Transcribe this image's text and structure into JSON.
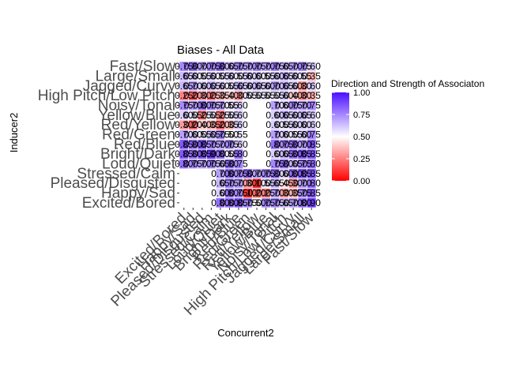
{
  "chart_data": {
    "type": "heatmap",
    "title": "Biases - All Data",
    "xlabel": "Concurrent2",
    "ylabel": "Inducer2",
    "categories": [
      "Excited/Bored",
      "Happy/Sad",
      "Pleased/Disgusted",
      "Stressed/Calm",
      "Loud/Quiet",
      "Bright/Dark",
      "Red/Blue",
      "Red/Green",
      "Red/Yellow",
      "Yellow/Blue",
      "Noisy/Tonal",
      "High Pitch/Low Pitch",
      "Jagged/Curvy",
      "Large/Small",
      "Fast/Slow"
    ],
    "y_categories": [
      "Excited/Bored",
      "Happy/Sad",
      "Pleased/Disgusted",
      "Stressed/Calm",
      "Loud/Quiet",
      "Bright/Dark",
      "Red/Blue",
      "Red/Green",
      "Red/Yellow",
      "Yellow/Blue",
      "Noisy/Tonal",
      "High Pitch/Low Pitch",
      "Jagged/Curvy",
      "Large/Small",
      "Fast/Slow"
    ],
    "values": [
      [
        null,
        null,
        null,
        null,
        0.8,
        0.8,
        0.85,
        0.75,
        0.5,
        0.75,
        0.75,
        0.65,
        0.7,
        0.8,
        0.9
      ],
      [
        null,
        null,
        null,
        null,
        0.6,
        0.8,
        0.75,
        0.1,
        0.2,
        0.25,
        0.7,
        0.3,
        0.35,
        0.75,
        0.85
      ],
      [
        null,
        null,
        null,
        null,
        0.65,
        0.75,
        0.7,
        0.3,
        0.1,
        0.55,
        0.65,
        0.45,
        0.3,
        0.7,
        0.8
      ],
      [
        null,
        null,
        null,
        null,
        0.7,
        0.8,
        0.75,
        0.8,
        0.7,
        0.75,
        0.8,
        0.6,
        0.8,
        0.85,
        0.85
      ],
      [
        0.8,
        0.75,
        0.7,
        0.75,
        0.65,
        0.8,
        0.75,
        null,
        null,
        null,
        0.75,
        0.8,
        0.65,
        0.75,
        0.8
      ],
      [
        0.85,
        0.8,
        0.85,
        0.9,
        0.8,
        0.55,
        0.8,
        null,
        null,
        null,
        0.6,
        0.65,
        0.8,
        0.85,
        0.85
      ],
      [
        0.85,
        0.8,
        0.85,
        0.75,
        0.7,
        0.75,
        0.6,
        null,
        null,
        null,
        0.8,
        0.75,
        0.8,
        0.7,
        0.85
      ],
      [
        0.7,
        0.6,
        0.55,
        0.65,
        0.75,
        0.5,
        0.55,
        null,
        null,
        null,
        0.7,
        0.6,
        0.55,
        0.6,
        0.75
      ],
      [
        0.3,
        0.2,
        0.4,
        0.35,
        0.2,
        0.35,
        0.6,
        null,
        null,
        null,
        0.6,
        0.55,
        0.6,
        0.6,
        0.6
      ],
      [
        0.6,
        0.55,
        0.25,
        0.55,
        0.25,
        0.55,
        0.6,
        null,
        null,
        null,
        0.6,
        0.65,
        0.6,
        0.65,
        0.6
      ],
      [
        0.75,
        0.7,
        0.8,
        0.75,
        0.7,
        0.55,
        0.6,
        null,
        null,
        null,
        0.7,
        0.6,
        0.75,
        0.7,
        0.75
      ],
      [
        0.25,
        0.2,
        0.3,
        0.25,
        0.35,
        0.4,
        0.3,
        0.55,
        0.55,
        0.55,
        0.55,
        0.6,
        0.4,
        0.3,
        0.35
      ],
      [
        0.65,
        0.7,
        0.6,
        0.65,
        0.6,
        0.55,
        0.65,
        0.6,
        0.65,
        0.6,
        0.7,
        0.65,
        0.6,
        0.3,
        0.6
      ],
      [
        0.65,
        0.6,
        0.55,
        0.6,
        0.55,
        0.6,
        0.55,
        0.6,
        0.6,
        0.55,
        0.6,
        0.65,
        0.6,
        0.55,
        0.35
      ],
      [
        0.75,
        0.8,
        0.7,
        0.75,
        0.8,
        0.65,
        0.75,
        0.7,
        0.75,
        0.7,
        0.75,
        0.65,
        0.7,
        0.75,
        0.6
      ]
    ],
    "color_scale": {
      "low": "#ff0000",
      "mid": "#ffffff",
      "high": "#4b0fff",
      "midpoint": 0.5
    },
    "legend": {
      "title": "Direction and Strength of Associaton",
      "ticks": [
        "0.00",
        "0.25",
        "0.50",
        "0.75",
        "1.00"
      ],
      "placement": "right"
    }
  }
}
